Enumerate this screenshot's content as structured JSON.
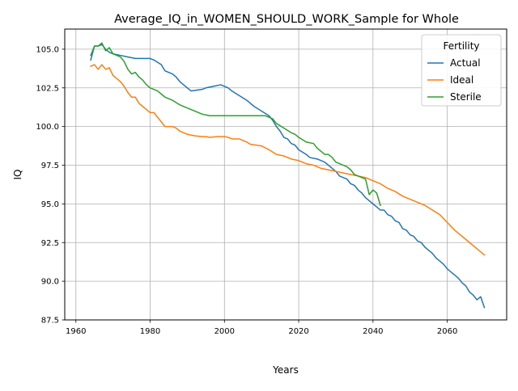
{
  "chart_data": {
    "type": "line",
    "title": "Average_IQ_in_WOMEN_SHOULD_WORK_Sample for Whole",
    "xlabel": "Years",
    "ylabel": "IQ",
    "xlim": [
      1957,
      2076
    ],
    "ylim": [
      87.5,
      106.3
    ],
    "xticks": [
      1960,
      1980,
      2000,
      2020,
      2040,
      2060
    ],
    "xtick_labels": [
      "1960",
      "1980",
      "2000",
      "2020",
      "2040",
      "2060"
    ],
    "yticks": [
      87.5,
      90.0,
      92.5,
      95.0,
      97.5,
      100.0,
      102.5,
      105.0
    ],
    "ytick_labels": [
      "87.5",
      "90.0",
      "92.5",
      "95.0",
      "97.5",
      "100.0",
      "102.5",
      "105.0"
    ],
    "grid": true,
    "legend_title": "Fertility",
    "legend_position": "top-right",
    "series": [
      {
        "name": "Actual",
        "color": "#1f77b4",
        "points": [
          [
            1964,
            104.3
          ],
          [
            1965,
            105.2
          ],
          [
            1966,
            105.2
          ],
          [
            1967,
            105.3
          ],
          [
            1968,
            105.0
          ],
          [
            1969,
            104.8
          ],
          [
            1970,
            104.7
          ],
          [
            1972,
            104.6
          ],
          [
            1974,
            104.5
          ],
          [
            1976,
            104.4
          ],
          [
            1980,
            104.4
          ],
          [
            1981,
            104.3
          ],
          [
            1983,
            104.0
          ],
          [
            1984,
            103.6
          ],
          [
            1986,
            103.4
          ],
          [
            1987,
            103.2
          ],
          [
            1988,
            102.9
          ],
          [
            1990,
            102.5
          ],
          [
            1991,
            102.3
          ],
          [
            1994,
            102.4
          ],
          [
            1995,
            102.5
          ],
          [
            1997,
            102.6
          ],
          [
            1999,
            102.7
          ],
          [
            2001,
            102.5
          ],
          [
            2002,
            102.3
          ],
          [
            2004,
            102.0
          ],
          [
            2006,
            101.7
          ],
          [
            2008,
            101.3
          ],
          [
            2010,
            101.0
          ],
          [
            2012,
            100.7
          ],
          [
            2013,
            100.4
          ],
          [
            2014,
            100.0
          ],
          [
            2015,
            99.7
          ],
          [
            2016,
            99.3
          ],
          [
            2017,
            99.2
          ],
          [
            2018,
            98.9
          ],
          [
            2019,
            98.8
          ],
          [
            2020,
            98.5
          ],
          [
            2022,
            98.2
          ],
          [
            2023,
            98.0
          ],
          [
            2025,
            97.9
          ],
          [
            2027,
            97.7
          ],
          [
            2028,
            97.5
          ],
          [
            2029,
            97.3
          ],
          [
            2030,
            97.1
          ],
          [
            2031,
            96.8
          ],
          [
            2033,
            96.6
          ],
          [
            2034,
            96.3
          ],
          [
            2035,
            96.2
          ],
          [
            2036,
            95.9
          ],
          [
            2037,
            95.7
          ],
          [
            2038,
            95.4
          ],
          [
            2040,
            95.0
          ],
          [
            2041,
            94.8
          ],
          [
            2042,
            94.6
          ],
          [
            2043,
            94.6
          ],
          [
            2044,
            94.3
          ],
          [
            2045,
            94.2
          ],
          [
            2046,
            93.9
          ],
          [
            2047,
            93.8
          ],
          [
            2048,
            93.4
          ],
          [
            2049,
            93.3
          ],
          [
            2050,
            93.0
          ],
          [
            2051,
            92.9
          ],
          [
            2052,
            92.6
          ],
          [
            2053,
            92.5
          ],
          [
            2054,
            92.2
          ],
          [
            2055,
            92.0
          ],
          [
            2056,
            91.8
          ],
          [
            2057,
            91.5
          ],
          [
            2058,
            91.3
          ],
          [
            2059,
            91.1
          ],
          [
            2060,
            90.8
          ],
          [
            2061,
            90.6
          ],
          [
            2062,
            90.4
          ],
          [
            2063,
            90.2
          ],
          [
            2064,
            89.9
          ],
          [
            2065,
            89.7
          ],
          [
            2066,
            89.3
          ],
          [
            2067,
            89.1
          ],
          [
            2068,
            88.8
          ],
          [
            2069,
            89.0
          ],
          [
            2070,
            88.3
          ]
        ]
      },
      {
        "name": "Ideal",
        "color": "#ff7f0e",
        "points": [
          [
            1964,
            103.9
          ],
          [
            1965,
            104.0
          ],
          [
            1966,
            103.7
          ],
          [
            1967,
            104.0
          ],
          [
            1968,
            103.7
          ],
          [
            1969,
            103.8
          ],
          [
            1970,
            103.3
          ],
          [
            1972,
            102.9
          ],
          [
            1973,
            102.6
          ],
          [
            1974,
            102.2
          ],
          [
            1975,
            101.9
          ],
          [
            1976,
            101.9
          ],
          [
            1977,
            101.5
          ],
          [
            1978,
            101.3
          ],
          [
            1979,
            101.1
          ],
          [
            1980,
            100.9
          ],
          [
            1981,
            100.9
          ],
          [
            1982,
            100.6
          ],
          [
            1983,
            100.3
          ],
          [
            1984,
            100.0
          ],
          [
            1986,
            100.0
          ],
          [
            1987,
            99.9
          ],
          [
            1988,
            99.7
          ],
          [
            1990,
            99.5
          ],
          [
            1992,
            99.4
          ],
          [
            1994,
            99.35
          ],
          [
            1995,
            99.35
          ],
          [
            1996,
            99.3
          ],
          [
            1998,
            99.35
          ],
          [
            2000,
            99.35
          ],
          [
            2001,
            99.3
          ],
          [
            2002,
            99.2
          ],
          [
            2004,
            99.2
          ],
          [
            2006,
            99.0
          ],
          [
            2007,
            98.85
          ],
          [
            2010,
            98.75
          ],
          [
            2012,
            98.5
          ],
          [
            2014,
            98.2
          ],
          [
            2016,
            98.1
          ],
          [
            2018,
            97.9
          ],
          [
            2020,
            97.8
          ],
          [
            2022,
            97.6
          ],
          [
            2024,
            97.5
          ],
          [
            2026,
            97.3
          ],
          [
            2028,
            97.2
          ],
          [
            2030,
            97.1
          ],
          [
            2032,
            97.0
          ],
          [
            2034,
            96.9
          ],
          [
            2036,
            96.8
          ],
          [
            2038,
            96.7
          ],
          [
            2040,
            96.5
          ],
          [
            2042,
            96.3
          ],
          [
            2044,
            96.0
          ],
          [
            2046,
            95.8
          ],
          [
            2048,
            95.5
          ],
          [
            2050,
            95.3
          ],
          [
            2052,
            95.1
          ],
          [
            2054,
            94.9
          ],
          [
            2056,
            94.6
          ],
          [
            2058,
            94.3
          ],
          [
            2060,
            93.8
          ],
          [
            2062,
            93.3
          ],
          [
            2064,
            92.9
          ],
          [
            2066,
            92.5
          ],
          [
            2068,
            92.1
          ],
          [
            2070,
            91.7
          ]
        ]
      },
      {
        "name": "Sterile",
        "color": "#2ca02c",
        "points": [
          [
            1964,
            104.6
          ],
          [
            1965,
            105.2
          ],
          [
            1966,
            105.2
          ],
          [
            1967,
            105.4
          ],
          [
            1968,
            104.9
          ],
          [
            1969,
            105.1
          ],
          [
            1970,
            104.7
          ],
          [
            1972,
            104.5
          ],
          [
            1973,
            104.2
          ],
          [
            1974,
            103.7
          ],
          [
            1975,
            103.4
          ],
          [
            1976,
            103.5
          ],
          [
            1977,
            103.2
          ],
          [
            1978,
            103.0
          ],
          [
            1979,
            102.7
          ],
          [
            1980,
            102.5
          ],
          [
            1982,
            102.3
          ],
          [
            1984,
            101.9
          ],
          [
            1986,
            101.7
          ],
          [
            1988,
            101.4
          ],
          [
            1990,
            101.2
          ],
          [
            1992,
            101.0
          ],
          [
            1994,
            100.8
          ],
          [
            1996,
            100.7
          ],
          [
            2000,
            100.7
          ],
          [
            2004,
            100.7
          ],
          [
            2008,
            100.7
          ],
          [
            2011,
            100.7
          ],
          [
            2012,
            100.6
          ],
          [
            2013,
            100.5
          ],
          [
            2014,
            100.2
          ],
          [
            2016,
            99.9
          ],
          [
            2018,
            99.6
          ],
          [
            2019,
            99.5
          ],
          [
            2020,
            99.3
          ],
          [
            2022,
            99.0
          ],
          [
            2024,
            98.9
          ],
          [
            2025,
            98.6
          ],
          [
            2026,
            98.4
          ],
          [
            2027,
            98.2
          ],
          [
            2028,
            98.2
          ],
          [
            2029,
            98.0
          ],
          [
            2030,
            97.7
          ],
          [
            2031,
            97.6
          ],
          [
            2032,
            97.5
          ],
          [
            2033,
            97.4
          ],
          [
            2034,
            97.2
          ],
          [
            2035,
            96.9
          ],
          [
            2036,
            96.8
          ],
          [
            2037,
            96.7
          ],
          [
            2038,
            96.6
          ],
          [
            2039,
            95.6
          ],
          [
            2040,
            95.9
          ],
          [
            2041,
            95.7
          ],
          [
            2042,
            94.9
          ]
        ]
      }
    ]
  }
}
